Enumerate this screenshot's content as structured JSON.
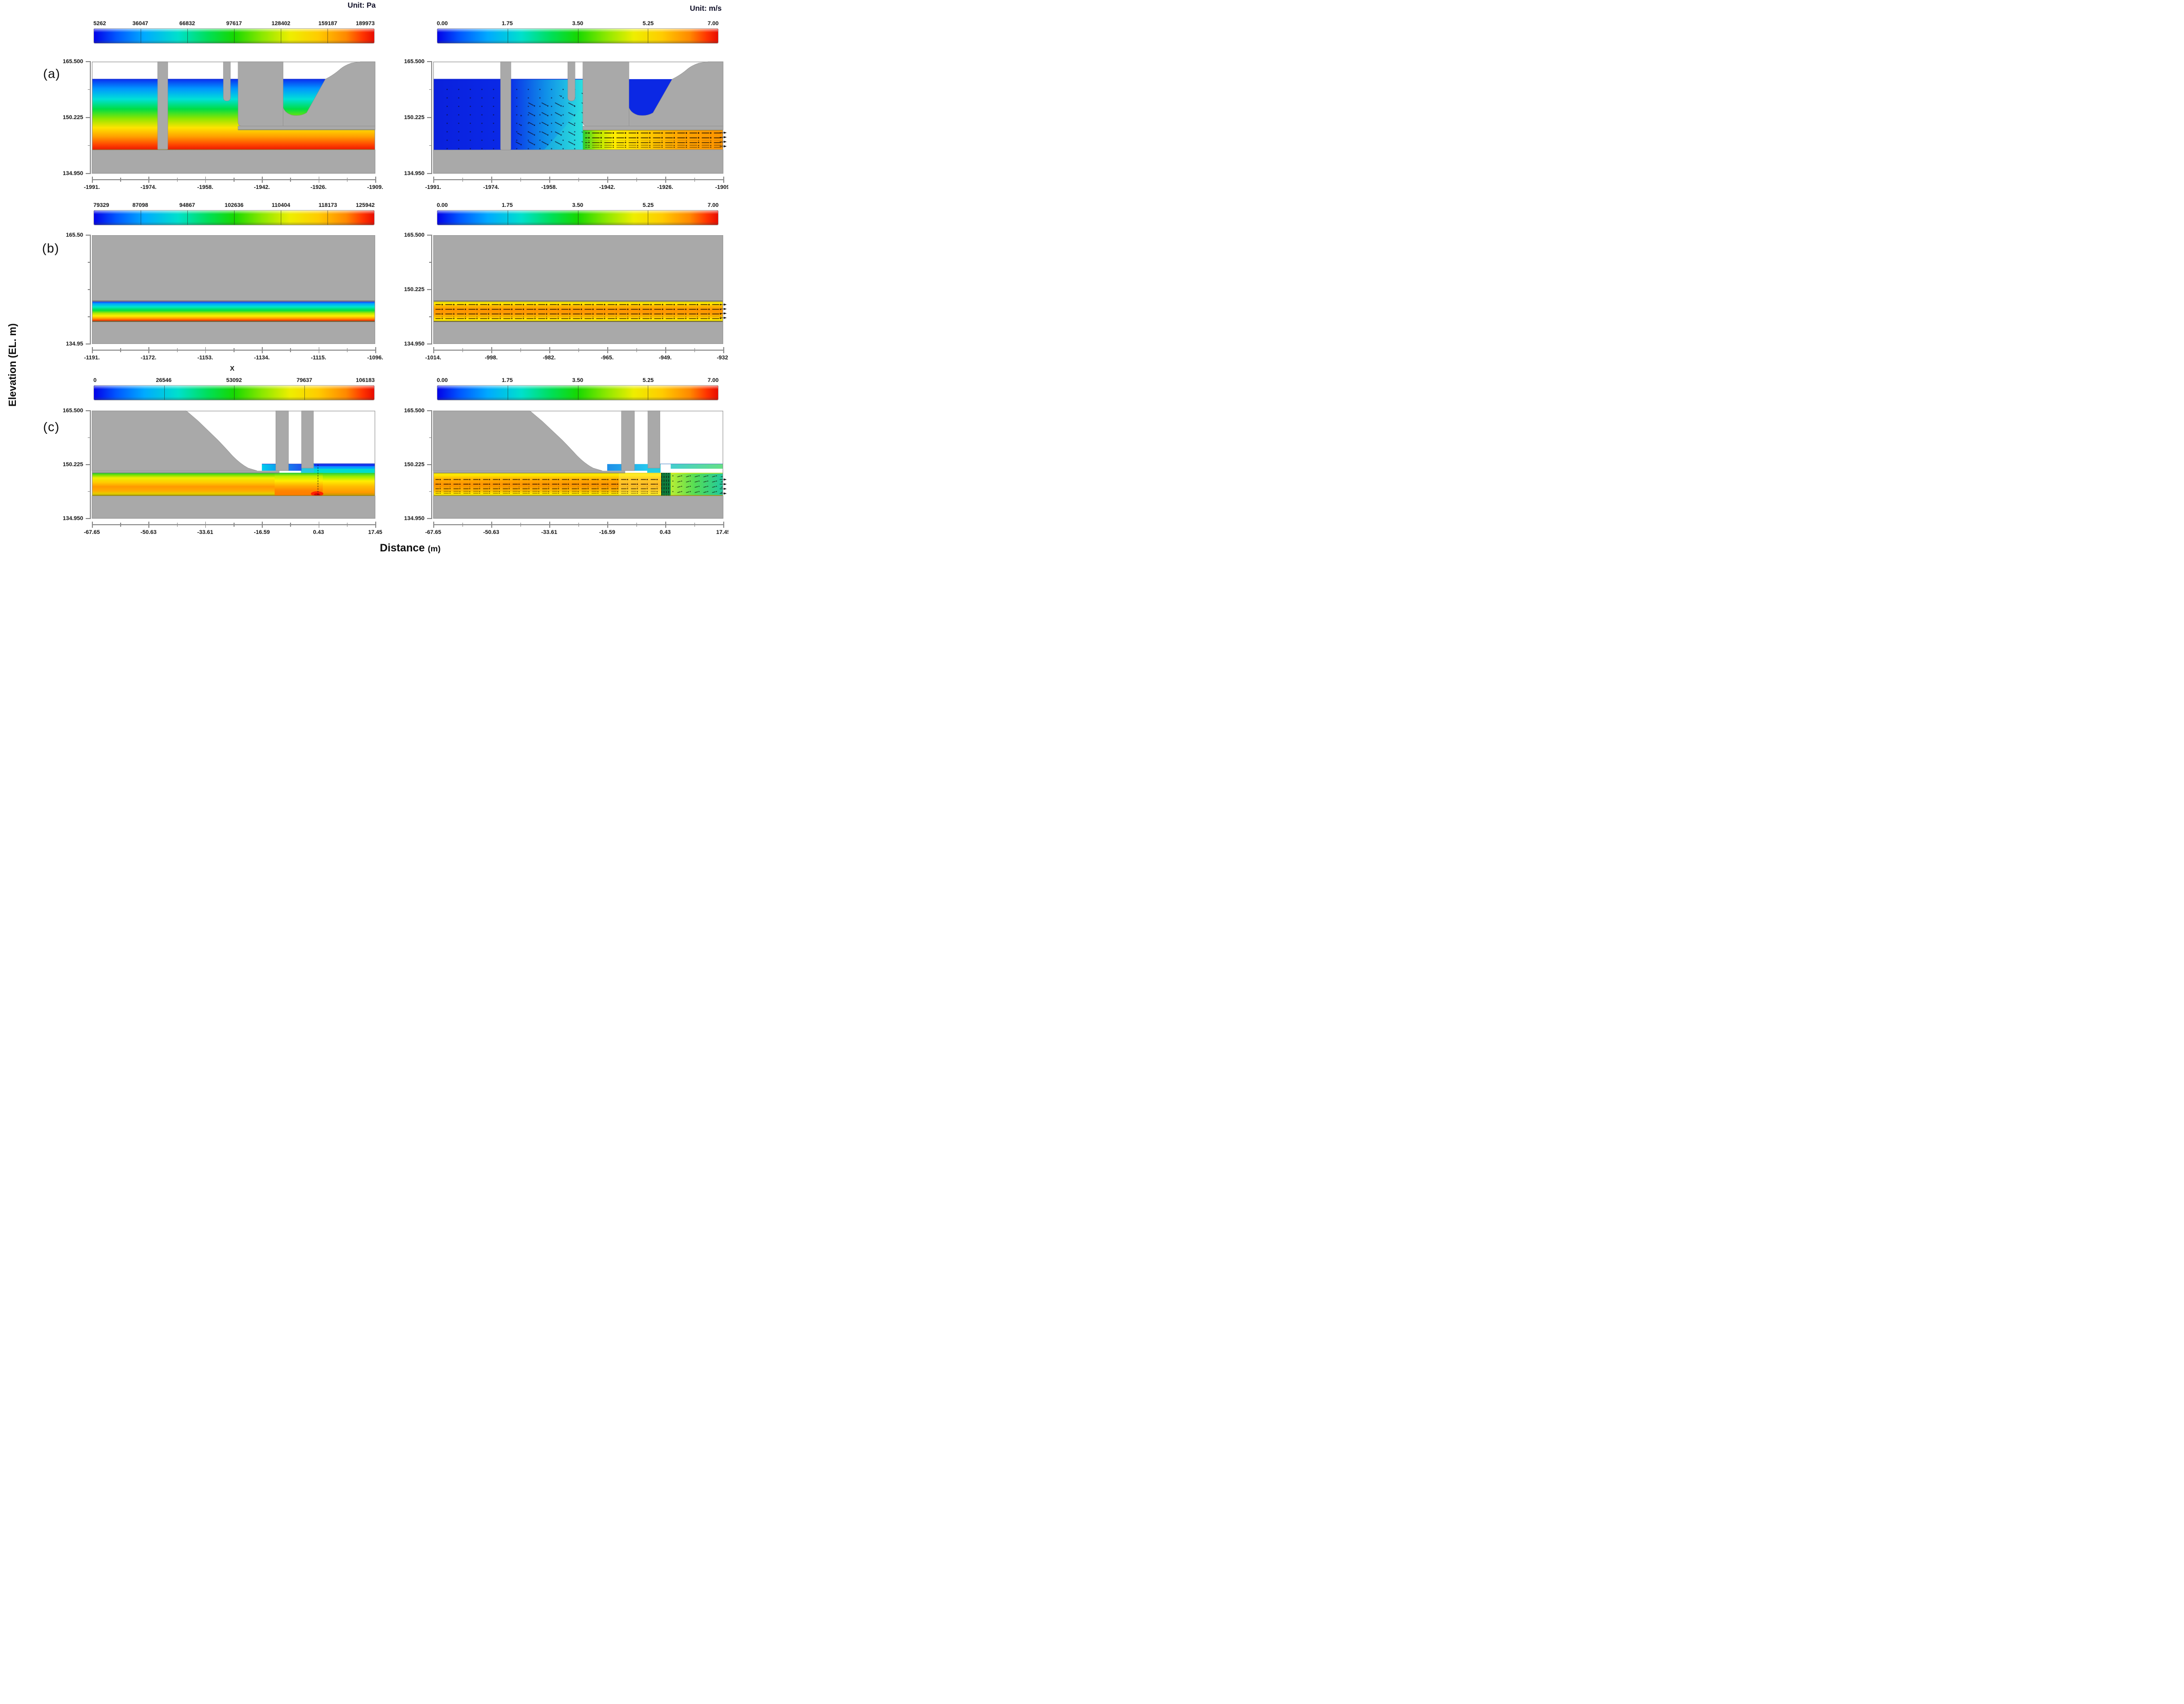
{
  "figure": {
    "unit_pressure": "Unit: Pa",
    "unit_velocity": "Unit: m/s",
    "y_axis_title": "Elevation (EL. m)",
    "x_axis_title": "Distance",
    "x_axis_title_suffix": "(m)",
    "middle_x_label": "X"
  },
  "rows": [
    {
      "label": "(a)",
      "pressure_colorbar_ticks": [
        "5262",
        "36047",
        "66832",
        "97617",
        "128402",
        "159187",
        "189973"
      ],
      "velocity_colorbar_ticks": [
        "0.00",
        "1.75",
        "3.50",
        "5.25",
        "7.00"
      ],
      "left_panel": {
        "y_ticks": [
          "165.500",
          "150.225",
          "134.950"
        ],
        "x_ticks": [
          "-1991.",
          "-1974.",
          "-1958.",
          "-1942.",
          "-1926.",
          "-1909."
        ]
      },
      "right_panel": {
        "y_ticks": [
          "165.500",
          "150.225",
          "134.950"
        ],
        "x_ticks": [
          "-1991.",
          "-1974.",
          "-1958.",
          "-1942.",
          "-1926.",
          "-1909."
        ]
      }
    },
    {
      "label": "(b)",
      "pressure_colorbar_ticks": [
        "79329",
        "87098",
        "94867",
        "102636",
        "110404",
        "118173",
        "125942"
      ],
      "velocity_colorbar_ticks": [
        "0.00",
        "1.75",
        "3.50",
        "5.25",
        "7.00"
      ],
      "left_panel": {
        "y_ticks": [
          "165.50",
          "134.95"
        ],
        "x_ticks": [
          "-1191.",
          "-1172.",
          "-1153.",
          "-1134.",
          "-1115.",
          "-1096."
        ]
      },
      "right_panel": {
        "y_ticks": [
          "165.500",
          "150.225",
          "134.950"
        ],
        "x_ticks": [
          "-1014.",
          "-998.",
          "-982.",
          "-965.",
          "-949.",
          "-932."
        ]
      }
    },
    {
      "label": "(c)",
      "pressure_colorbar_ticks": [
        "0",
        "26546",
        "53092",
        "79637",
        "106183"
      ],
      "velocity_colorbar_ticks": [
        "0.00",
        "1.75",
        "3.50",
        "5.25",
        "7.00"
      ],
      "left_panel": {
        "y_ticks": [
          "165.500",
          "150.225",
          "134.950"
        ],
        "x_ticks": [
          "-67.65",
          "-50.63",
          "-33.61",
          "-16.59",
          "0.43",
          "17.45"
        ]
      },
      "right_panel": {
        "y_ticks": [
          "165.500",
          "150.225",
          "134.950"
        ],
        "x_ticks": [
          "-67.65",
          "-50.63",
          "-33.61",
          "-16.59",
          "0.43",
          "17.45"
        ]
      }
    }
  ],
  "chart_data": [
    {
      "panel": "a",
      "position": "left",
      "type": "heatmap",
      "field": "pressure",
      "unit": "Pa",
      "colorbar_ticks": [
        5262,
        36047,
        66832,
        97617,
        128402,
        159187,
        189973
      ],
      "colorbar_range": [
        5262,
        189973
      ],
      "x_ticks": [
        -1991,
        -1974,
        -1958,
        -1942,
        -1926,
        -1909
      ],
      "y_ticks": [
        165.5,
        150.225,
        134.95
      ],
      "y_range": [
        134.95,
        165.5
      ],
      "description": "Hydrostatic pressure in reservoir at intake: pressure increases linearly with depth from water surface near EL.160.7 (blue, ~5 kPa) to bottom EL.141 (red, ~190 kPa); intake tower piers and sloping bank shown in gray; pressurized outlet conduit continues to the right under the structure."
    },
    {
      "panel": "a",
      "position": "right",
      "type": "heatmap",
      "field": "velocity",
      "unit": "m/s",
      "colorbar_ticks": [
        0,
        1.75,
        3.5,
        5.25,
        7
      ],
      "colorbar_range": [
        0,
        7
      ],
      "x_ticks": [
        -1991,
        -1974,
        -1958,
        -1942,
        -1926,
        -1909
      ],
      "y_ticks": [
        165.5,
        150.225,
        134.95
      ],
      "y_range": [
        134.95,
        165.5
      ],
      "description": "Velocity magnitude with vectors: near-zero (dark blue) in reservoir, accelerating (cyan-green) toward the gate opening, discharging as a 5-7 m/s yellow-orange jet through the outlet conduit; stagnant blue water in gate shaft."
    },
    {
      "panel": "b",
      "position": "left",
      "type": "heatmap",
      "field": "pressure",
      "unit": "Pa",
      "colorbar_ticks": [
        79329,
        87098,
        94867,
        102636,
        110404,
        118173,
        125942
      ],
      "colorbar_range": [
        79329,
        125942
      ],
      "x_ticks": [
        -1191,
        -1172,
        -1153,
        -1134,
        -1115,
        -1096
      ],
      "y_ticks": [
        165.5,
        134.95
      ],
      "y_range": [
        134.95,
        165.5
      ],
      "description": "Pressure in buried pressurized conduit section: vertical hydrostatic gradient across conduit height, ~79 kPa at crown (blue) to ~126 kPa at invert (red); surrounding rock/embankment gray."
    },
    {
      "panel": "b",
      "position": "right",
      "type": "heatmap",
      "field": "velocity",
      "unit": "m/s",
      "colorbar_ticks": [
        0,
        1.75,
        3.5,
        5.25,
        7
      ],
      "colorbar_range": [
        0,
        7
      ],
      "x_ticks": [
        -1014,
        -998,
        -982,
        -965,
        -949,
        -932
      ],
      "y_ticks": [
        165.5,
        150.225,
        134.95
      ],
      "y_range": [
        134.95,
        165.5
      ],
      "description": "Uniform conduit flow ~5-6 m/s: orange core with yellow wall layers, horizontal velocity vectors in four rows along the conduit."
    },
    {
      "panel": "c",
      "position": "left",
      "type": "heatmap",
      "field": "pressure",
      "unit": "Pa",
      "colorbar_ticks": [
        0,
        26546,
        53092,
        79637,
        106183
      ],
      "colorbar_range": [
        0,
        106183
      ],
      "x_ticks": [
        -67.65,
        -50.63,
        -33.61,
        -16.59,
        0.43,
        17.45
      ],
      "y_ticks": [
        165.5,
        150.225,
        134.95
      ],
      "y_range": [
        134.95,
        165.5
      ],
      "description": "Pressure near outlet gate (gate at x = 0.43): layered pressure in conduit (green crown to orange invert), local red peak ~100 kPa at gate invert, free-surface stratified flow downstream with blue low-pressure surface layer; dam slope and gate piers gray."
    },
    {
      "panel": "c",
      "position": "right",
      "type": "heatmap",
      "field": "velocity",
      "unit": "m/s",
      "colorbar_ticks": [
        0,
        1.75,
        3.5,
        5.25,
        7
      ],
      "colorbar_range": [
        0,
        7
      ],
      "x_ticks": [
        -67.65,
        -50.63,
        -33.61,
        -16.59,
        0.43,
        17.45
      ],
      "y_ticks": [
        165.5,
        150.225,
        134.95
      ],
      "y_range": [
        134.95,
        165.5
      ],
      "description": "Velocity near outlet gate: ~5-6 m/s orange conduit flow decelerating to yellow approaching the gate, strong vertical vector column at the gate slot (x = 0.43), 2-4 m/s green flow downstream; stagnant blue pool above the gate lip."
    }
  ],
  "colors": {
    "structure_gray": "#a9a9a9",
    "background": "#ffffff",
    "rainbow_low": "#0202e8",
    "rainbow_high": "#e80c00"
  }
}
